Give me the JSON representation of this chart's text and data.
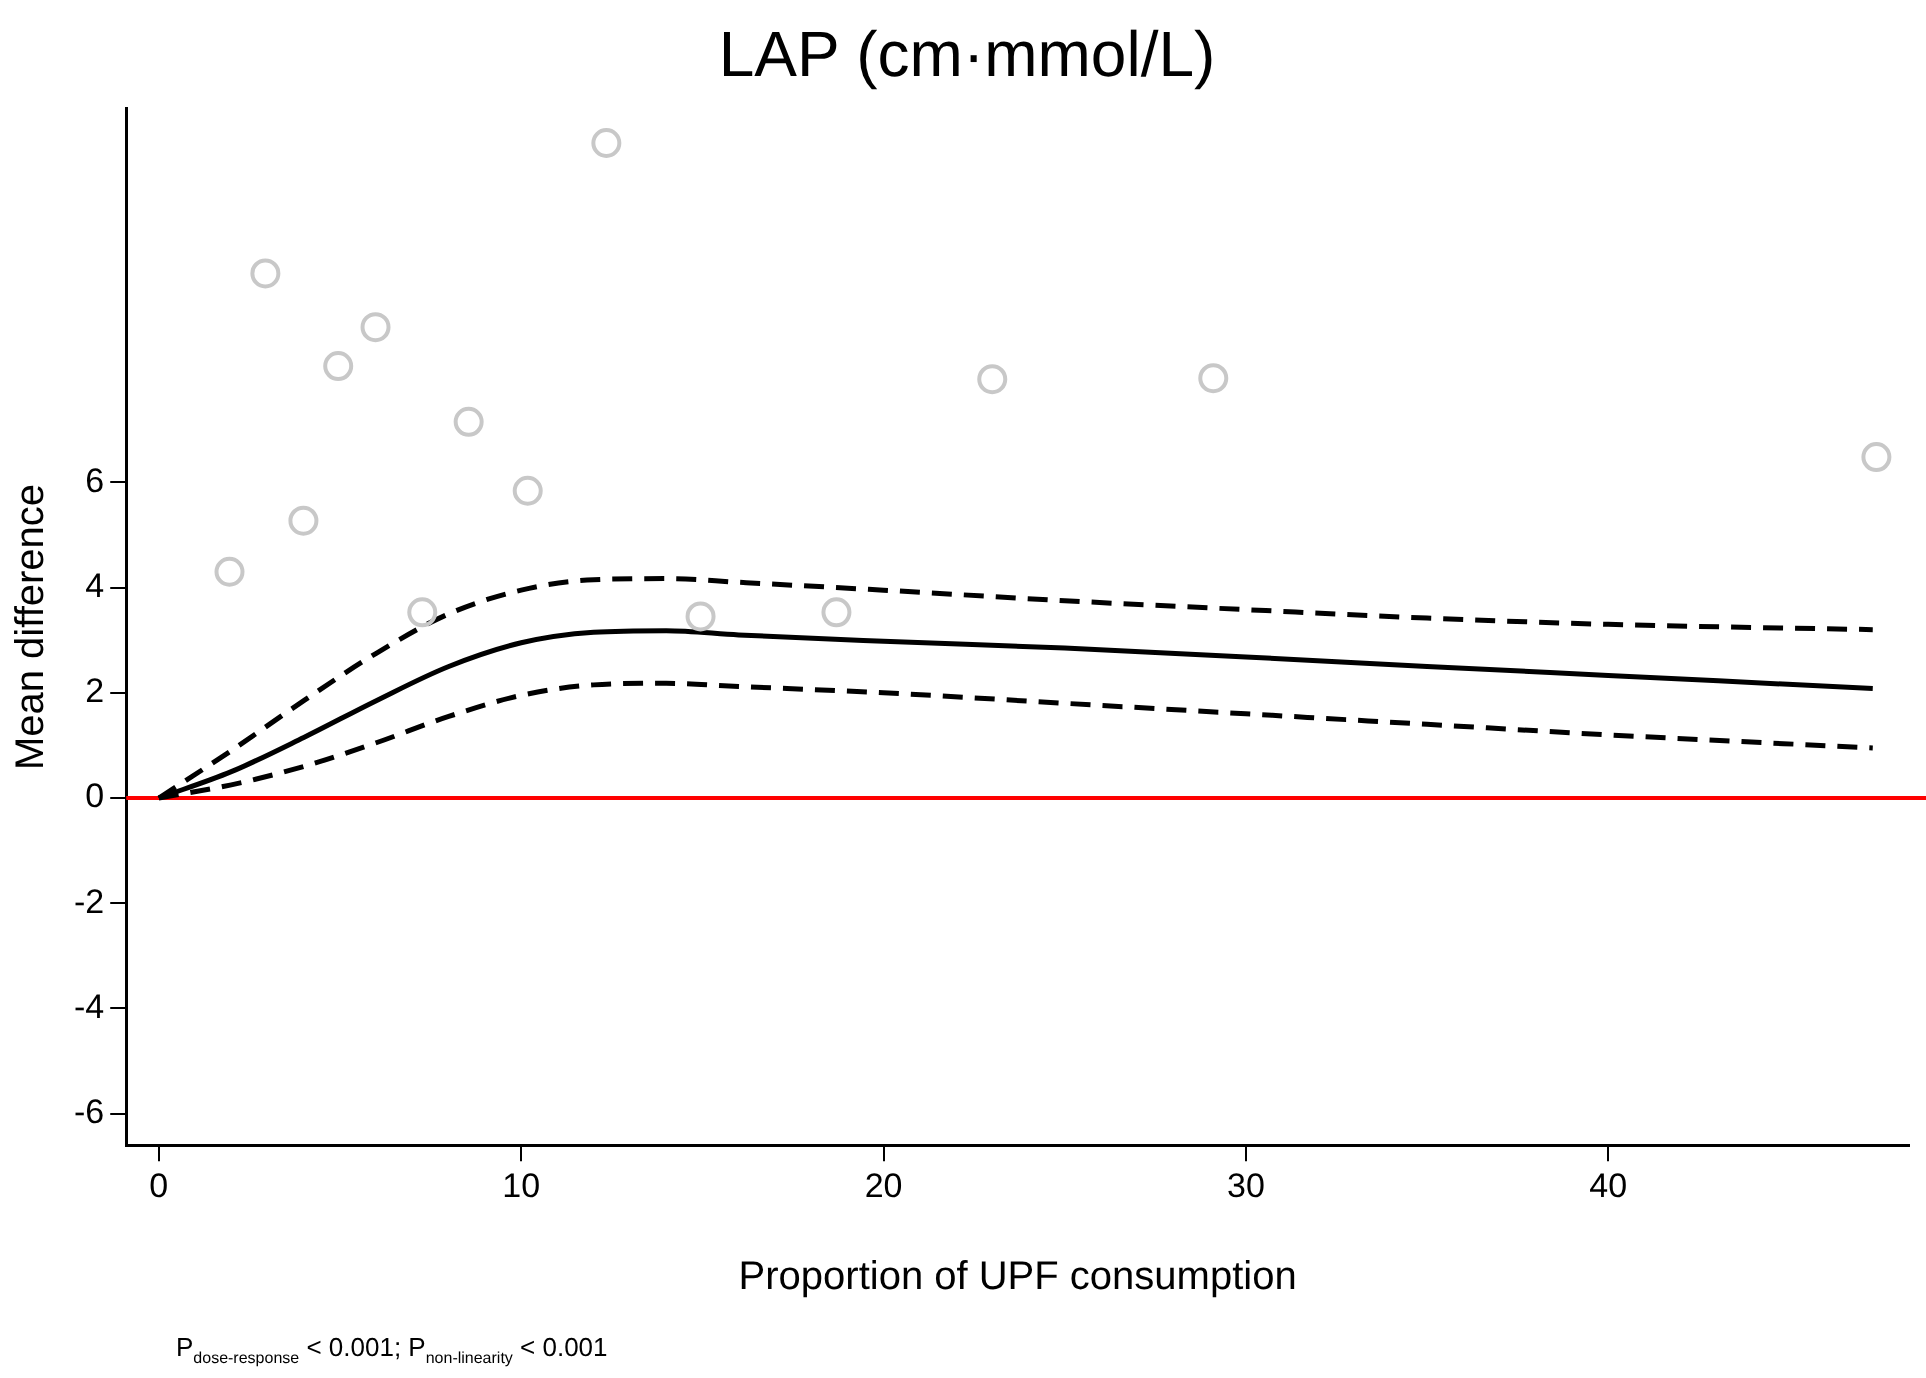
{
  "chart_data": {
    "type": "line",
    "title": "LAP (cm·mmol/L)",
    "xlabel": "Proportion of UPF consumption",
    "ylabel": "Mean difference",
    "xlim": [
      -0.9,
      48.3
    ],
    "xticks": [
      0,
      10,
      20,
      30,
      40
    ],
    "ylim": [
      -6.6,
      13.1
    ],
    "yticks": [
      -6,
      -4,
      -2,
      0,
      2,
      4,
      6
    ],
    "grid": false,
    "legend": false,
    "series": [
      {
        "type": "scatter",
        "marker": "circle",
        "color": "#c8c8c8",
        "x": [
          1.95,
          2.94,
          3.99,
          4.95,
          5.98,
          7.27,
          8.55,
          10.18,
          12.35,
          14.95,
          18.7,
          23.0,
          29.1,
          47.4
        ],
        "values": [
          4.3,
          9.97,
          5.27,
          8.21,
          8.95,
          3.53,
          7.15,
          5.84,
          12.45,
          3.45,
          3.53,
          7.96,
          7.98,
          6.48
        ]
      },
      {
        "type": "line",
        "marker": "none",
        "line_style": "dashed",
        "color": "#000000",
        "x": [
          0,
          2,
          4,
          6,
          8,
          10,
          12,
          14,
          16,
          20,
          25,
          30,
          35,
          40,
          47.3
        ],
        "values": [
          0,
          0.9,
          1.85,
          2.75,
          3.5,
          3.95,
          4.15,
          4.17,
          4.1,
          3.95,
          3.75,
          3.58,
          3.42,
          3.3,
          3.2
        ]
      },
      {
        "type": "line",
        "marker": "none",
        "line_style": "solid",
        "color": "#000000",
        "x": [
          0,
          2,
          4,
          6,
          8,
          10,
          12,
          14,
          16,
          20,
          25,
          30,
          35,
          40,
          47.3
        ],
        "values": [
          0,
          0.5,
          1.15,
          1.85,
          2.5,
          2.95,
          3.15,
          3.18,
          3.1,
          2.98,
          2.85,
          2.68,
          2.5,
          2.33,
          2.08
        ]
      },
      {
        "type": "line",
        "marker": "none",
        "line_style": "dashed",
        "color": "#000000",
        "x": [
          0,
          2,
          4,
          6,
          8,
          10,
          12,
          14,
          16,
          20,
          25,
          30,
          35,
          40,
          47.3
        ],
        "values": [
          0,
          0.25,
          0.6,
          1.05,
          1.55,
          1.95,
          2.15,
          2.18,
          2.12,
          2.0,
          1.8,
          1.6,
          1.4,
          1.2,
          0.95
        ]
      }
    ],
    "ref_lines": [
      {
        "axis": "y",
        "value": 0,
        "color": "#ff0000",
        "line_style": "solid"
      }
    ],
    "annotations": [
      "P$_{dose-response}$ < 0.001; P$_{non-linearity}$ < 0.001"
    ]
  }
}
